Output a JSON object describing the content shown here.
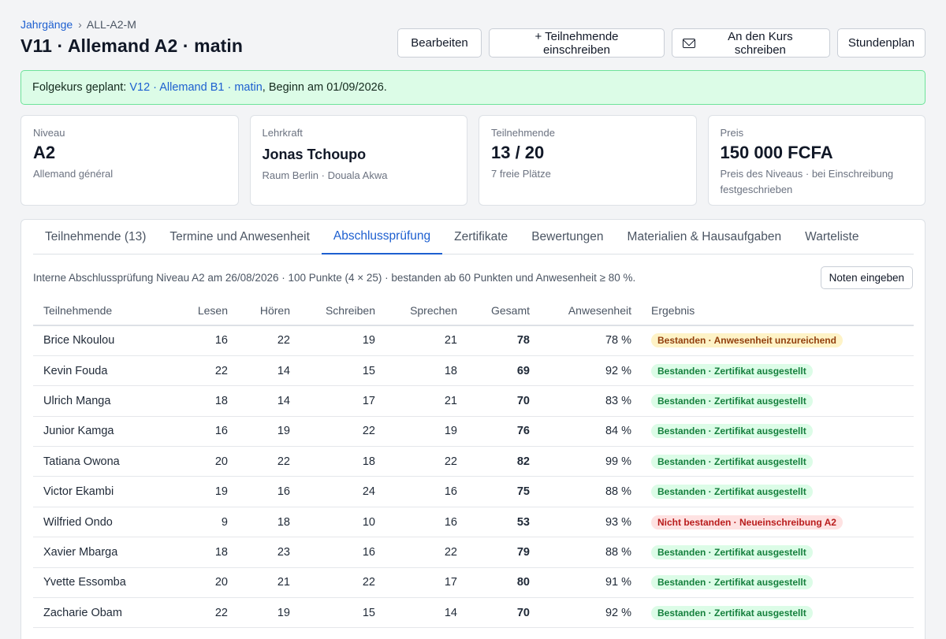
{
  "breadcrumb": {
    "parent": "Jahrgänge",
    "separator": "›",
    "current": "ALL-A2-M"
  },
  "page_title": "V11 · Allemand A2 · matin",
  "actions": {
    "edit": "Bearbeiten",
    "enroll": "+ Teilnehmende einschreiben",
    "mail": "An den Kurs schreiben",
    "schedule": "Stundenplan"
  },
  "notice": {
    "prefix": "Folgekurs geplant: ",
    "link": "V12 · Allemand B1 · matin",
    "suffix": ", Beginn am 01/09/2026."
  },
  "cards": [
    {
      "label": "Niveau",
      "value": "A2",
      "sub": "Allemand général"
    },
    {
      "label": "Lehrkraft",
      "value": "Jonas Tchoupo",
      "sub": "Raum Berlin · Douala Akwa"
    },
    {
      "label": "Teilnehmende",
      "value": "13 / 20",
      "sub": "7 freie Plätze"
    },
    {
      "label": "Preis",
      "value": "150 000 FCFA",
      "sub": "Preis des Niveaus · bei Einschreibung festgeschrieben"
    }
  ],
  "tabs": [
    "Teilnehmende (13)",
    "Termine und Anwesenheit",
    "Abschlussprüfung",
    "Zertifikate",
    "Bewertungen",
    "Materialien & Hausaufgaben",
    "Warteliste"
  ],
  "exam": {
    "info": "Interne Abschlussprüfung Niveau A2 am 26/08/2026 · 100 Punkte (4 × 25) · bestanden ab 60 Punkten und Anwesenheit ≥ 80 %.",
    "grade_button": "Noten eingeben"
  },
  "table": {
    "headers": [
      "Teilnehmende",
      "Lesen",
      "Hören",
      "Schreiben",
      "Sprechen",
      "Gesamt",
      "Anwesenheit",
      "Ergebnis"
    ],
    "rows": [
      {
        "name": "Brice Nkoulou",
        "lesen": "16",
        "horen": "22",
        "schreiben": "19",
        "sprechen": "21",
        "gesamt": "78",
        "anwesenheit": "78 %",
        "ergebnis": "Bestanden · Anwesenheit unzureichend",
        "status": "warn"
      },
      {
        "name": "Kevin Fouda",
        "lesen": "22",
        "horen": "14",
        "schreiben": "15",
        "sprechen": "18",
        "gesamt": "69",
        "anwesenheit": "92 %",
        "ergebnis": "Bestanden · Zertifikat ausgestellt",
        "status": "ok"
      },
      {
        "name": "Ulrich Manga",
        "lesen": "18",
        "horen": "14",
        "schreiben": "17",
        "sprechen": "21",
        "gesamt": "70",
        "anwesenheit": "83 %",
        "ergebnis": "Bestanden · Zertifikat ausgestellt",
        "status": "ok"
      },
      {
        "name": "Junior Kamga",
        "lesen": "16",
        "horen": "19",
        "schreiben": "22",
        "sprechen": "19",
        "gesamt": "76",
        "anwesenheit": "84 %",
        "ergebnis": "Bestanden · Zertifikat ausgestellt",
        "status": "ok"
      },
      {
        "name": "Tatiana Owona",
        "lesen": "20",
        "horen": "22",
        "schreiben": "18",
        "sprechen": "22",
        "gesamt": "82",
        "anwesenheit": "99 %",
        "ergebnis": "Bestanden · Zertifikat ausgestellt",
        "status": "ok"
      },
      {
        "name": "Victor Ekambi",
        "lesen": "19",
        "horen": "16",
        "schreiben": "24",
        "sprechen": "16",
        "gesamt": "75",
        "anwesenheit": "88 %",
        "ergebnis": "Bestanden · Zertifikat ausgestellt",
        "status": "ok"
      },
      {
        "name": "Wilfried Ondo",
        "lesen": "9",
        "horen": "18",
        "schreiben": "10",
        "sprechen": "16",
        "gesamt": "53",
        "anwesenheit": "93 %",
        "ergebnis": "Nicht bestanden · Neueinschreibung A2",
        "status": "fail"
      },
      {
        "name": "Xavier Mbarga",
        "lesen": "18",
        "horen": "23",
        "schreiben": "16",
        "sprechen": "22",
        "gesamt": "79",
        "anwesenheit": "88 %",
        "ergebnis": "Bestanden · Zertifikat ausgestellt",
        "status": "ok"
      },
      {
        "name": "Yvette Essomba",
        "lesen": "20",
        "horen": "21",
        "schreiben": "22",
        "sprechen": "17",
        "gesamt": "80",
        "anwesenheit": "91 %",
        "ergebnis": "Bestanden · Zertifikat ausgestellt",
        "status": "ok"
      },
      {
        "name": "Zacharie Obam",
        "lesen": "22",
        "horen": "19",
        "schreiben": "15",
        "sprechen": "14",
        "gesamt": "70",
        "anwesenheit": "92 %",
        "ergebnis": "Bestanden · Zertifikat ausgestellt",
        "status": "ok"
      }
    ]
  },
  "colors": {
    "accent": "#1d5fd0",
    "success_bg": "#dcfce7",
    "success_text": "#15803d",
    "warning_bg": "#fef3c7",
    "warning_text": "#92400e",
    "danger_bg": "#fee2e2",
    "danger_text": "#b91c1c"
  }
}
